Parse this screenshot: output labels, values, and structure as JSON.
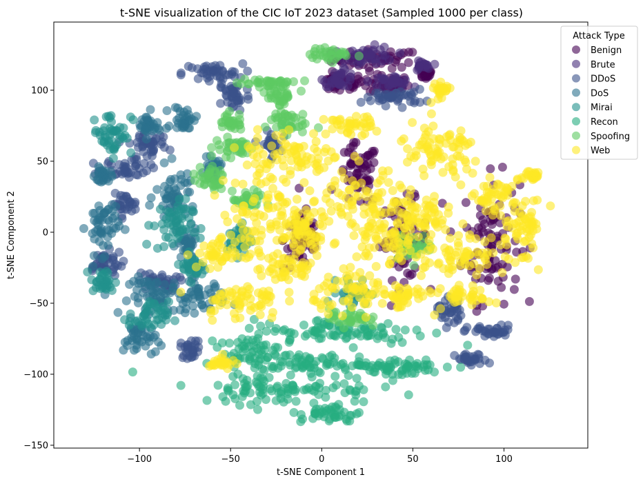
{
  "chart_data": {
    "type": "scatter",
    "title": "t-SNE visualization of the CIC IoT 2023 dataset (Sampled 1000 per class)",
    "xlabel": "t-SNE Component 1",
    "ylabel": "t-SNE Component 2",
    "xlim": [
      -147,
      146
    ],
    "ylim": [
      -152,
      148
    ],
    "xticks": [
      -100,
      -50,
      0,
      50,
      100
    ],
    "xtick_labels": [
      "−100",
      "−50",
      "0",
      "50",
      "100"
    ],
    "yticks": [
      -150,
      -100,
      -50,
      0,
      50,
      100
    ],
    "ytick_labels": [
      "−150",
      "−100",
      "−50",
      "0",
      "50",
      "100"
    ],
    "grid": false,
    "legend": {
      "title": "Attack Type",
      "placement": "top-right"
    },
    "series": [
      {
        "name": "Benign",
        "color": "#440154",
        "clusters": [
          [
            30,
            122,
            22,
            6
          ],
          [
            10,
            105,
            12,
            6
          ],
          [
            37,
            104,
            10,
            6
          ],
          [
            57,
            112,
            4,
            4
          ],
          [
            93,
            -5,
            14,
            40
          ],
          [
            45,
            -5,
            12,
            25
          ],
          [
            -10,
            -5,
            10,
            20
          ],
          [
            20,
            40,
            10,
            20
          ]
        ]
      },
      {
        "name": "Brute",
        "color": "#472d7b",
        "clusters": [
          [
            27,
            124,
            12,
            6
          ],
          [
            10,
            108,
            8,
            5
          ],
          [
            38,
            106,
            10,
            4
          ],
          [
            55,
            117,
            4,
            3
          ]
        ]
      },
      {
        "name": "DDoS",
        "color": "#3b528b",
        "clusters": [
          [
            -60,
            112,
            15,
            6
          ],
          [
            -48,
            96,
            8,
            10
          ],
          [
            -95,
            62,
            10,
            12
          ],
          [
            -108,
            45,
            12,
            6
          ],
          [
            -120,
            -22,
            10,
            8
          ],
          [
            -90,
            -35,
            10,
            6
          ],
          [
            70,
            -55,
            6,
            10
          ],
          [
            93,
            -70,
            12,
            4
          ],
          [
            82,
            -90,
            8,
            4
          ],
          [
            40,
            95,
            15,
            5
          ],
          [
            -72,
            -82,
            5,
            6
          ],
          [
            -28,
            62,
            5,
            8
          ],
          [
            -108,
            20,
            6,
            6
          ]
        ]
      },
      {
        "name": "DoS",
        "color": "#2c728e",
        "clusters": [
          [
            -90,
            -45,
            14,
            12
          ],
          [
            -68,
            -45,
            14,
            10
          ],
          [
            -120,
            5,
            8,
            18
          ],
          [
            -100,
            -75,
            8,
            12
          ],
          [
            -80,
            25,
            10,
            18
          ],
          [
            -74,
            -10,
            5,
            10
          ],
          [
            -95,
            75,
            6,
            8
          ],
          [
            -120,
            40,
            4,
            6
          ],
          [
            -60,
            45,
            4,
            6
          ],
          [
            -75,
            80,
            6,
            8
          ]
        ]
      },
      {
        "name": "Mirai",
        "color": "#21918c",
        "clusters": [
          [
            -115,
            70,
            10,
            14
          ],
          [
            -82,
            5,
            10,
            16
          ],
          [
            -95,
            -60,
            10,
            10
          ],
          [
            -120,
            -35,
            6,
            8
          ],
          [
            18,
            -42,
            8,
            8
          ],
          [
            -45,
            -5,
            6,
            10
          ],
          [
            -70,
            -25,
            6,
            8
          ]
        ]
      },
      {
        "name": "Recon",
        "color": "#27ad81",
        "clusters": [
          [
            10,
            -70,
            45,
            8
          ],
          [
            -20,
            -110,
            45,
            10
          ],
          [
            40,
            -95,
            25,
            6
          ],
          [
            -40,
            -85,
            15,
            10
          ],
          [
            5,
            -128,
            15,
            6
          ],
          [
            -10,
            -92,
            30,
            6
          ]
        ]
      },
      {
        "name": "Spoofing",
        "color": "#5ec962",
        "clusters": [
          [
            5,
            125,
            10,
            4
          ],
          [
            -30,
            105,
            15,
            4
          ],
          [
            -20,
            78,
            10,
            8
          ],
          [
            -48,
            60,
            10,
            6
          ],
          [
            -62,
            38,
            8,
            8
          ],
          [
            -40,
            22,
            8,
            6
          ],
          [
            15,
            -60,
            10,
            6
          ],
          [
            -50,
            78,
            6,
            6
          ],
          [
            -22,
            96,
            6,
            6
          ],
          [
            50,
            -10,
            10,
            8
          ]
        ]
      },
      {
        "name": "Web",
        "color": "#fde725",
        "clusters": [
          [
            -30,
            15,
            22,
            28
          ],
          [
            -45,
            -48,
            20,
            12
          ],
          [
            -15,
            55,
            25,
            15
          ],
          [
            25,
            20,
            25,
            22
          ],
          [
            20,
            -42,
            22,
            12
          ],
          [
            65,
            55,
            22,
            20
          ],
          [
            35,
            -5,
            20,
            15
          ],
          [
            75,
            -15,
            25,
            12
          ],
          [
            -55,
            -15,
            12,
            10
          ],
          [
            110,
            5,
            12,
            18
          ],
          [
            55,
            10,
            15,
            10
          ],
          [
            45,
            -45,
            12,
            8
          ],
          [
            -20,
            -25,
            15,
            10
          ],
          [
            80,
            -45,
            12,
            6
          ],
          [
            115,
            40,
            5,
            5
          ],
          [
            65,
            100,
            5,
            4
          ],
          [
            -55,
            -92,
            6,
            4
          ],
          [
            -10,
            0,
            10,
            18
          ],
          [
            15,
            75,
            12,
            6
          ],
          [
            95,
            25,
            10,
            10
          ]
        ]
      }
    ]
  }
}
